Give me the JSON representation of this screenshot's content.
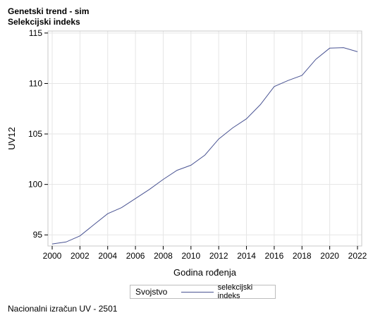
{
  "titles": {
    "line1": "Genetski trend - sim",
    "line2": "Selekcijski indeks"
  },
  "footnote": "Nacionalni izračun UV - 2501",
  "legend": {
    "title": "Svojstvo",
    "entry": "selekcijski indeks"
  },
  "colors": {
    "series": "#4a5493",
    "grid": "#e5e5e5",
    "frame": "#c8c8c8"
  },
  "chart_data": {
    "type": "line",
    "title": "Genetski trend - sim",
    "subtitle": "Selekcijski indeks",
    "xlabel": "Godina rođenja",
    "ylabel": "UV12",
    "xlim": [
      2000,
      2022
    ],
    "ylim": [
      93.9,
      115.2
    ],
    "xticks": [
      2000,
      2002,
      2004,
      2006,
      2008,
      2010,
      2012,
      2014,
      2016,
      2018,
      2020,
      2022
    ],
    "yticks": [
      95,
      100,
      105,
      110,
      115
    ],
    "grid": true,
    "legend_position": "bottom",
    "series": [
      {
        "name": "selekcijski indeks",
        "x": [
          2000,
          2001,
          2002,
          2003,
          2004,
          2005,
          2006,
          2007,
          2008,
          2009,
          2010,
          2011,
          2012,
          2013,
          2014,
          2015,
          2016,
          2017,
          2018,
          2019,
          2020,
          2021,
          2022
        ],
        "y": [
          94.1,
          94.3,
          94.9,
          96.0,
          97.1,
          97.7,
          98.6,
          99.5,
          100.5,
          101.4,
          101.9,
          102.9,
          104.5,
          105.6,
          106.5,
          107.9,
          109.7,
          110.3,
          110.8,
          112.4,
          113.5,
          113.55,
          113.15
        ]
      }
    ]
  }
}
